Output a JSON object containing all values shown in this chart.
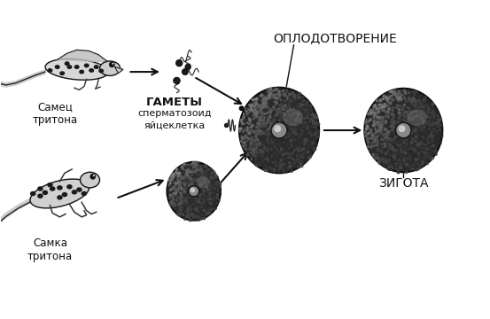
{
  "bg_color": "#ffffff",
  "text_samet": "Самец\nтритона",
  "text_samka": "Самка\nтритона",
  "text_gamety_bold": "ГАМЕТЫ",
  "text_gamety_line2": "сперматозоид",
  "text_gamety_line3": "яйцеклетка",
  "text_oplodotvorenie": "ОПЛОДОТВОРЕНИЕ",
  "text_zigota": "ЗИГОТА",
  "arrow_color": "#111111",
  "font_size_small": 8.5,
  "font_size_medium": 9.5,
  "figsize": [
    5.53,
    3.6
  ],
  "dpi": 100
}
